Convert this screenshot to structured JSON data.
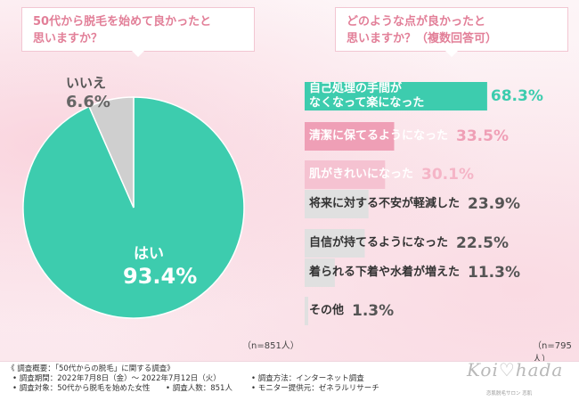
{
  "questions": {
    "left": [
      "50代から脱毛を始めて良かったと",
      "思いますか？"
    ],
    "right": [
      "どのような点が良かったと",
      "思いますか？（複数回答可）"
    ]
  },
  "chart_data": [
    {
      "type": "pie",
      "n_label": "（n=851人）",
      "slices": [
        {
          "label": "はい",
          "value": 93.4,
          "value_text": "93.4%",
          "color": "#3dccae"
        },
        {
          "label": "いいえ",
          "value": 6.6,
          "value_text": "6.6%",
          "color": "#cfcfcf"
        }
      ]
    },
    {
      "type": "bar",
      "n_label": "（n=795人）",
      "xlim": [
        0,
        100
      ],
      "categories": [
        [
          "自己処理の手間が",
          "なくなって楽になった"
        ],
        [
          "清潔に保てるようになった"
        ],
        [
          "肌がきれいになった"
        ],
        [
          "将来に対する不安が軽減した"
        ],
        [
          "自信が持てるようになった"
        ],
        [
          "着られる下着や水着が増えた"
        ],
        [
          "その他"
        ]
      ],
      "values": [
        68.3,
        33.5,
        30.1,
        23.9,
        22.5,
        11.3,
        1.3
      ],
      "value_texts": [
        "68.3%",
        "33.5%",
        "30.1%",
        "23.9%",
        "22.5%",
        "11.3%",
        "1.3%"
      ],
      "bar_colors": [
        "#3dccae",
        "#ef9fb6",
        "#f5c2d1",
        "#e0e0e0",
        "#e0e0e0",
        "#e0e0e0",
        "#e0e0e0"
      ],
      "label_colors": [
        "#ffffff",
        "#ffffff",
        "#ffffff",
        "#333333",
        "#333333",
        "#333333",
        "#333333"
      ],
      "value_colors": [
        "#3dccae",
        "#ef9fb6",
        "#f5b5c7",
        "#555555",
        "#555555",
        "#555555",
        "#555555"
      ]
    }
  ],
  "footer": {
    "overview": "《 調査概要：「50代からの脱毛」に関する調査》",
    "period": "• 調査期間：2022年7月8日（金）～ 2022年7月12日（火）",
    "target": "• 調査対象：50代から脱毛を始めた女性",
    "count": "• 調査人数：851人",
    "method": "• 調査方法：インターネット調査",
    "monitor": "• モニター提供元：ゼネラルリサーチ",
    "logo": "Koi♡hada",
    "logo_sub": "恋肌脱毛サロン 恋肌"
  }
}
